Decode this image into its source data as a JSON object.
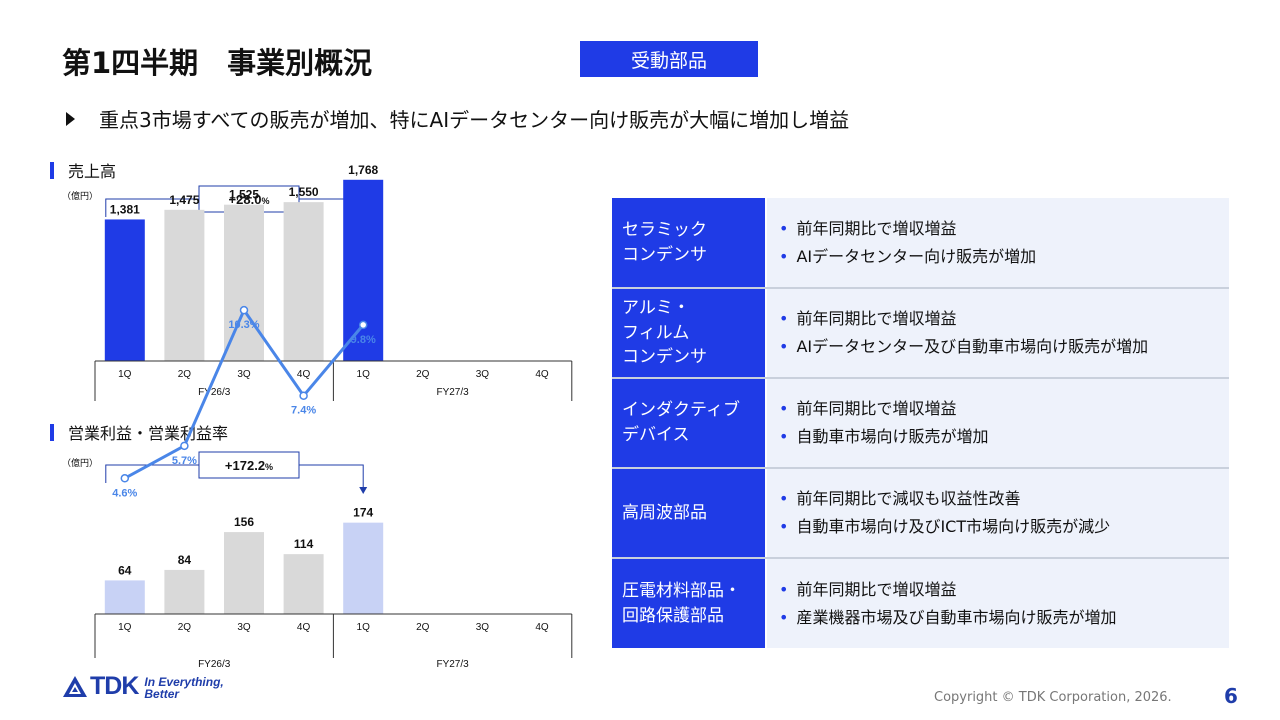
{
  "title": "第1四半期　事業別概況",
  "segment_tag": "受動部品",
  "headline": "重点3市場すべての販売が増加、特にAIデータセンター向け販売が大幅に増加し増益",
  "colors": {
    "accent": "#1f3be6",
    "bar_gray": "#d9d9d9",
    "bar_light": "#c8d2f5",
    "line": "#4a86e8"
  },
  "sales_section": {
    "label": "売上高",
    "unit": "（億円）",
    "growth": "+28.0",
    "growth_unit": "%"
  },
  "profit_section": {
    "label": "営業利益・営業利益率",
    "unit": "（億円）",
    "growth": "+172.2",
    "growth_unit": "%"
  },
  "chart_data": [
    {
      "type": "bar",
      "title": "売上高",
      "categories": [
        "1Q",
        "2Q",
        "3Q",
        "4Q",
        "1Q",
        "2Q",
        "3Q",
        "4Q"
      ],
      "groups": [
        "FY26/3",
        "FY27/3"
      ],
      "values": [
        1381,
        1475,
        1525,
        1550,
        1768,
        null,
        null,
        null
      ],
      "value_labels": [
        "1,381",
        "1,475",
        "1,525",
        "1,550",
        "1,768",
        "",
        "",
        ""
      ],
      "highlight": [
        true,
        false,
        false,
        false,
        true,
        false,
        false,
        false
      ],
      "ylim": [
        0,
        2000
      ],
      "annotation": "+28.0%"
    },
    {
      "type": "bar",
      "title": "営業利益・営業利益率",
      "categories": [
        "1Q",
        "2Q",
        "3Q",
        "4Q",
        "1Q",
        "2Q",
        "3Q",
        "4Q"
      ],
      "groups": [
        "FY26/3",
        "FY27/3"
      ],
      "values": [
        64,
        84,
        156,
        114,
        174,
        null,
        null,
        null
      ],
      "value_labels": [
        "64",
        "84",
        "156",
        "114",
        "174",
        "",
        "",
        ""
      ],
      "margin_pct": [
        4.6,
        5.7,
        10.3,
        7.4,
        9.8,
        null,
        null,
        null
      ],
      "margin_labels": [
        "4.6%",
        "5.7%",
        "10.3%",
        "7.4%",
        "9.8%",
        "",
        "",
        ""
      ],
      "highlight": [
        true,
        false,
        false,
        false,
        true,
        false,
        false,
        false
      ],
      "ylim": [
        0,
        200
      ],
      "margin_ylim": [
        0,
        20
      ],
      "annotation": "+172.2%"
    }
  ],
  "segments": [
    {
      "name_lines": [
        "セラミック",
        "コンデンサ"
      ],
      "points": [
        "前年同期比で増収増益",
        "AIデータセンター向け販売が増加"
      ]
    },
    {
      "name_lines": [
        "アルミ・",
        "フィルム",
        "コンデンサ"
      ],
      "points": [
        "前年同期比で増収増益",
        "AIデータセンター及び自動車市場向け販売が増加"
      ]
    },
    {
      "name_lines": [
        "インダクティブ",
        "デバイス"
      ],
      "points": [
        "前年同期比で増収増益",
        "自動車市場向け販売が増加"
      ]
    },
    {
      "name_lines": [
        "高周波部品"
      ],
      "points": [
        "前年同期比で減収も収益性改善",
        "自動車市場向け及びICT市場向け販売が減少"
      ]
    },
    {
      "name_lines": [
        "圧電材料部品・",
        "回路保護部品"
      ],
      "points": [
        "前年同期比で増収増益",
        "産業機器市場及び自動車市場向け販売が増加"
      ]
    }
  ],
  "footer": {
    "logo": "TDK",
    "tagline_1": "In Everything,",
    "tagline_2": "Better",
    "copyright": "Copyright © TDK Corporation, 2026.",
    "page": "6"
  }
}
